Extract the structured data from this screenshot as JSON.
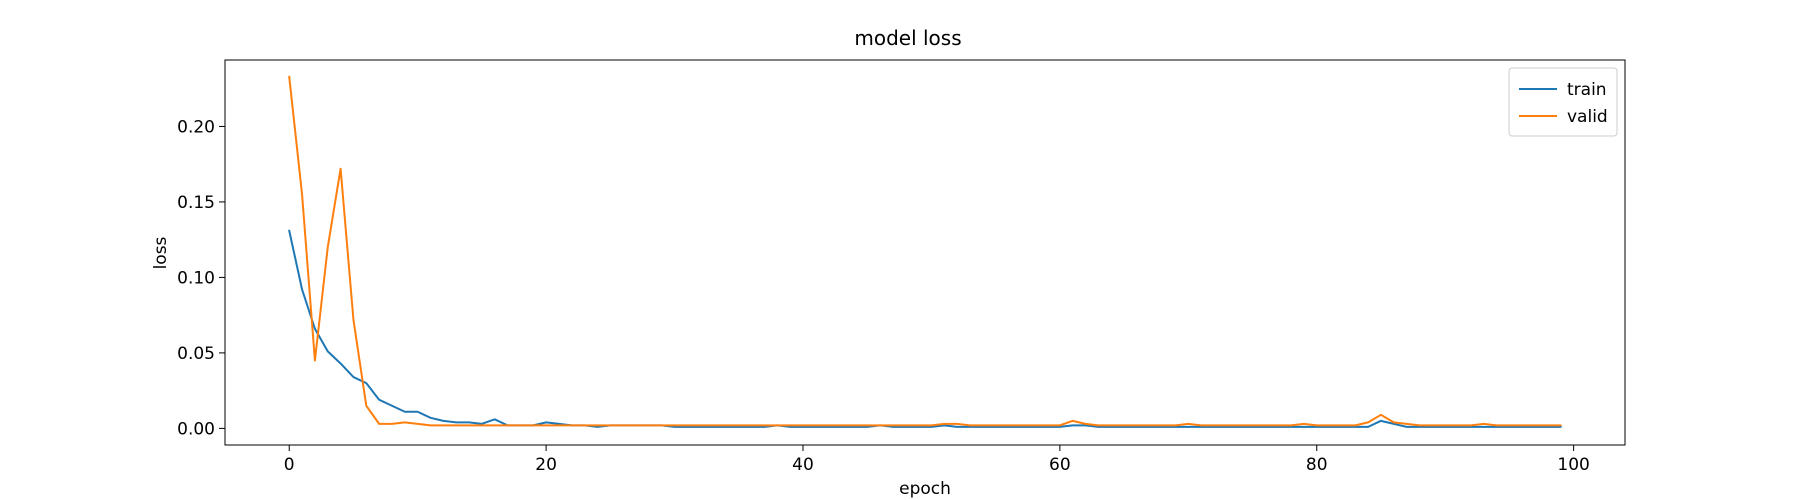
{
  "chart_data": {
    "type": "line",
    "title": "model loss",
    "xlabel": "epoch",
    "ylabel": "loss",
    "xlim": [
      -5,
      104
    ],
    "ylim": [
      -0.011,
      0.244
    ],
    "xticks": [
      0,
      20,
      40,
      60,
      80,
      100
    ],
    "xtick_labels": [
      "0",
      "20",
      "40",
      "60",
      "80",
      "100"
    ],
    "yticks": [
      0.0,
      0.05,
      0.1,
      0.15,
      0.2
    ],
    "ytick_labels": [
      "0.00",
      "0.05",
      "0.10",
      "0.15",
      "0.20"
    ],
    "grid": false,
    "legend_position": "top-right",
    "series": [
      {
        "name": "train",
        "color": "#1f77b4",
        "values": [
          0.131,
          0.092,
          0.066,
          0.051,
          0.043,
          0.034,
          0.03,
          0.019,
          0.015,
          0.011,
          0.011,
          0.007,
          0.005,
          0.004,
          0.004,
          0.003,
          0.006,
          0.002,
          0.002,
          0.002,
          0.004,
          0.003,
          0.002,
          0.002,
          0.001,
          0.002,
          0.002,
          0.002,
          0.002,
          0.002,
          0.001,
          0.001,
          0.001,
          0.001,
          0.001,
          0.001,
          0.001,
          0.001,
          0.002,
          0.001,
          0.001,
          0.001,
          0.001,
          0.001,
          0.001,
          0.001,
          0.002,
          0.001,
          0.001,
          0.001,
          0.001,
          0.002,
          0.001,
          0.001,
          0.001,
          0.001,
          0.001,
          0.001,
          0.001,
          0.001,
          0.001,
          0.002,
          0.002,
          0.001,
          0.001,
          0.001,
          0.001,
          0.001,
          0.001,
          0.001,
          0.001,
          0.001,
          0.001,
          0.001,
          0.001,
          0.001,
          0.001,
          0.001,
          0.001,
          0.001,
          0.001,
          0.001,
          0.001,
          0.001,
          0.001,
          0.005,
          0.003,
          0.001,
          0.001,
          0.001,
          0.001,
          0.001,
          0.001,
          0.001,
          0.001,
          0.001,
          0.001,
          0.001,
          0.001,
          0.001
        ]
      },
      {
        "name": "valid",
        "color": "#ff7f0e",
        "values": [
          0.233,
          0.155,
          0.045,
          0.12,
          0.172,
          0.072,
          0.015,
          0.003,
          0.003,
          0.004,
          0.003,
          0.002,
          0.002,
          0.002,
          0.002,
          0.002,
          0.002,
          0.002,
          0.002,
          0.002,
          0.002,
          0.002,
          0.002,
          0.002,
          0.002,
          0.002,
          0.002,
          0.002,
          0.002,
          0.002,
          0.002,
          0.002,
          0.002,
          0.002,
          0.002,
          0.002,
          0.002,
          0.002,
          0.002,
          0.002,
          0.002,
          0.002,
          0.002,
          0.002,
          0.002,
          0.002,
          0.002,
          0.002,
          0.002,
          0.002,
          0.002,
          0.003,
          0.003,
          0.002,
          0.002,
          0.002,
          0.002,
          0.002,
          0.002,
          0.002,
          0.002,
          0.005,
          0.003,
          0.002,
          0.002,
          0.002,
          0.002,
          0.002,
          0.002,
          0.002,
          0.003,
          0.002,
          0.002,
          0.002,
          0.002,
          0.002,
          0.002,
          0.002,
          0.002,
          0.003,
          0.002,
          0.002,
          0.002,
          0.002,
          0.004,
          0.009,
          0.004,
          0.003,
          0.002,
          0.002,
          0.002,
          0.002,
          0.002,
          0.003,
          0.002,
          0.002,
          0.002,
          0.002,
          0.002,
          0.002
        ]
      }
    ]
  }
}
